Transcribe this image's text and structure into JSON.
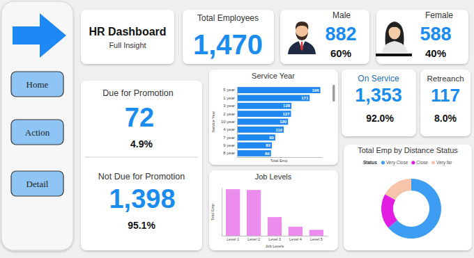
{
  "header": {
    "title": "HR Dashboard",
    "subtitle": "Full Insight"
  },
  "nav": [
    "Home",
    "Action",
    "Detail"
  ],
  "kpis": {
    "total": {
      "label": "Total Employees",
      "value": "1,470"
    },
    "male": {
      "label": "Male",
      "value": "882",
      "pct": "60%"
    },
    "female": {
      "label": "Female",
      "value": "588",
      "pct": "40%"
    },
    "on_service": {
      "label": "On Service",
      "value": "1,353",
      "pct": "92.0%"
    },
    "retrench": {
      "label": "Retreanch",
      "value": "117",
      "pct": "8.0%"
    },
    "due": {
      "label": "Due for Promotion",
      "value": "72",
      "pct": "4.9%"
    },
    "not_due": {
      "label": "Not Due for Promotion",
      "value": "1,398",
      "pct": "95.1%"
    }
  },
  "chart_data": [
    {
      "type": "bar",
      "title": "Service Year",
      "orientation": "horizontal",
      "categories": [
        "5 year",
        "1 year",
        "3 year",
        "2 year",
        "10 year",
        "4 year",
        "7 year",
        "9 year",
        "8 year"
      ],
      "values": [
        196,
        171,
        128,
        127,
        120,
        110,
        90,
        82,
        80
      ],
      "color": "#1e88f0",
      "xlim": [
        0,
        200
      ],
      "x_label": "Total Emp",
      "y_label": "Service Year",
      "data_labels": true,
      "tick_labels": "y"
    },
    {
      "type": "bar",
      "title": "Job Levels",
      "categories": [
        "Level 1",
        "Level 2",
        "Level 3",
        "Level 4",
        "Level 5"
      ],
      "values": [
        543,
        534,
        218,
        106,
        69
      ],
      "color": "#ec8cec",
      "ylim": [
        0,
        560
      ],
      "x_label": "Job Levels",
      "y_label": "Total Emp",
      "tick_labels": "x"
    },
    {
      "type": "donut",
      "title": "Total Emp by Distance Status",
      "legend_title": "Status",
      "categories": [
        "Very Close",
        "Close",
        "Very far"
      ],
      "values": [
        940,
        280,
        250
      ],
      "colors": [
        "#3d9df3",
        "#e21ee2",
        "#f5c4ab"
      ],
      "legend": "top"
    }
  ]
}
